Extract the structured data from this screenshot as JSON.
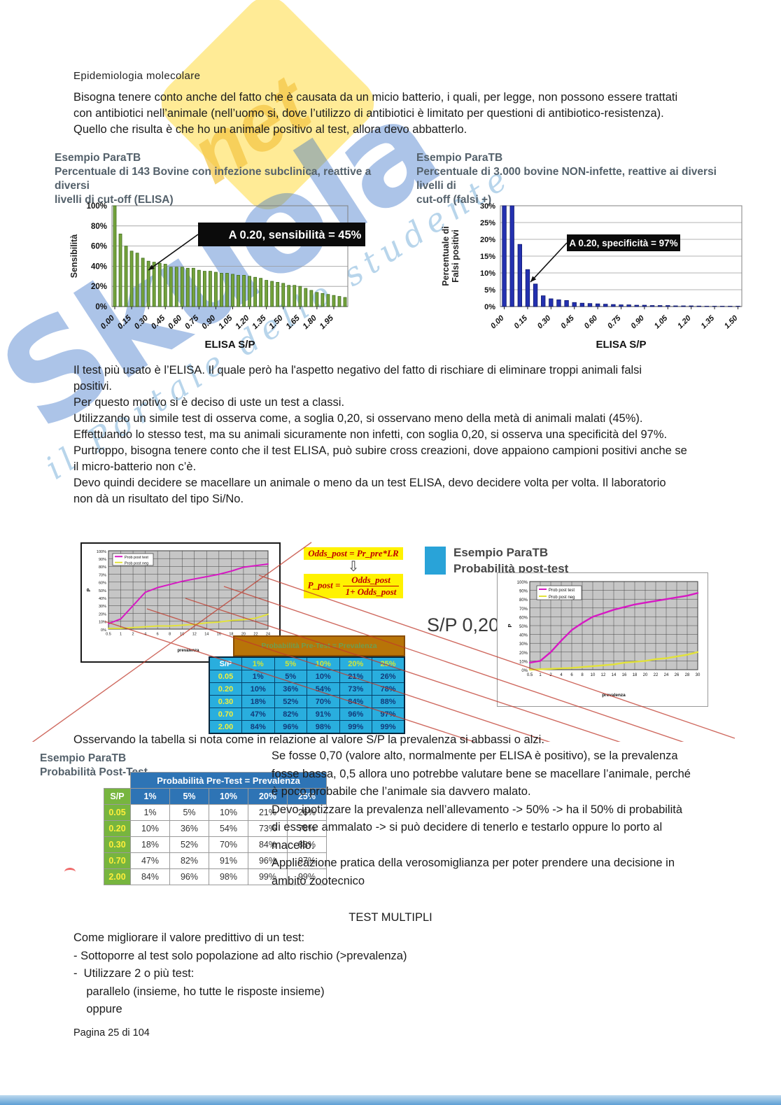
{
  "header": {
    "title": "Epidemiologia molecolare"
  },
  "intro": "Bisogna tenere conto anche del fatto che è causata da un micio batterio, i quali, per legge, non possono essere trattati\ncon antibiotici nell’animale (nell’uomo si, dove l’utilizzo di antibiotici è limitato per questioni di antibiotico-resistenza).\nQuello che risulta è che ho un animale positivo al test, allora devo abbatterlo.",
  "watermark": {
    "brand": "Skuola",
    "suffix": "net",
    "tagline": "il Portale dello studente"
  },
  "charts_section": {
    "left_title": "Esempio ParaTB",
    "left_subtitle": "Percentuale di 143 Bovine con infezione subclinica, reattive a diversi\nlivelli di cut-off (ELISA)",
    "right_title": "Esempio ParaTB",
    "right_subtitle": "Percentuale di 3.000 bovine NON-infette, reattive ai diversi livelli di\ncut-off (falsi +)"
  },
  "body_text": "Il test più usato è l’ELISA. Il quale però ha l'aspetto negativo del fatto di rischiare di eliminare troppi animali falsi\npositivi.\nPer questo motivo si è deciso di uste un test a classi.\nUtilizzando un simile test di osserva come, a soglia 0,20, si osservano meno della metà di animali malati (45%).\nEffettuando lo stesso test, ma su animali sicuramente non infetti, con soglia 0,20, si osserva una specificità del 97%.\nPurtroppo, bisogna tenere conto che il test ELISA, può subire cross creazioni, dove appaiono campioni positivi anche se\nil micro-batterio non c’è.\nDevo quindi decidere se macellare un animale o meno da un test ELISA, devo decidere volta per volta. Il laboratorio\nnon dà un risultato del tipo Si/No.",
  "mid_section": {
    "formula1": "Odds_post = Pr_pre*LR",
    "formula2_lhs": "P_post =",
    "formula2_num": "Odds_post",
    "formula2_den": "1+ Odds_post",
    "arrow_glyph": "⇩",
    "heading_line1": "Esempio ParaTB",
    "heading_line2": "Probabilità post-test",
    "sp_label": "S/P 0,20",
    "pretest_bar": "Probabilità Pre-Test = Prevalenza"
  },
  "observation": "Osservando la tabella si nota come in relazione al valore S/P la prevalenza si abbassi o alzi.",
  "post_test": {
    "heading": "Esempio ParaTB\nProbabilità Post-Test",
    "pretest_header": "Probabilità Pre-Test = Prevalenza"
  },
  "right_column": "Se fosse 0,70 (valore alto, normalmente per ELISA è positivo), se la prevalenza\nfosse bassa, 0,5 allora uno potrebbe valutare bene se macellare l’animale, perché\nè poco probabile che l’animale sia davvero malato.\nDevo ipotizzare la prevalenza nell’allevamento -> 50% -> ha il 50% di probabilità\ndi essere ammalato -> si può decidere di tenerlo e testarlo oppure lo porto al\nmacello.\nApplicazione pratica della verosomiglianza per poter prendere una decisione in\nambito zootecnico",
  "test_multipli": {
    "title": "TEST MULTIPLI",
    "body": "Come migliorare il valore predittivo di un test:\n- Sottoporre al test solo popolazione ad alto rischio (>prevalenza)\n-  Utilizzare 2 o più test:\n    parallelo (insieme, ho tutte le risposte insieme)\n    oppure"
  },
  "footer": "Pagina 25 di 104",
  "colors": {
    "green_bars": "#75a33c",
    "blue_bars": "#2431b0",
    "cyan_table": "#29aede",
    "brown_bar": "#b87408",
    "accent_blue": "#29a3d8",
    "magenta_line": "#d619c3",
    "yellow_line": "#e2e23a"
  },
  "tables": {
    "columns": [
      "S/P",
      "1%",
      "5%",
      "10%",
      "20%",
      "25%"
    ],
    "rows": [
      [
        "0.05",
        "1%",
        "5%",
        "10%",
        "21%",
        "26%"
      ],
      [
        "0.20",
        "10%",
        "36%",
        "54%",
        "73%",
        "78%"
      ],
      [
        "0.30",
        "18%",
        "52%",
        "70%",
        "84%",
        "88%"
      ],
      [
        "0.70",
        "47%",
        "82%",
        "91%",
        "96%",
        "97%"
      ],
      [
        "2.00",
        "84%",
        "96%",
        "98%",
        "99%",
        "99%"
      ]
    ]
  },
  "chart_data": [
    {
      "type": "bar",
      "title": "Percentuale di 143 Bovine con infezione subclinica, reattive a diversi livelli di cut-off (ELISA)",
      "categories": [
        "0.00",
        "0.15",
        "0.30",
        "0.45",
        "0.60",
        "0.75",
        "0.90",
        "1.05",
        "1.20",
        "1.35",
        "1.50",
        "1.65",
        "1.80",
        "1.95"
      ],
      "values": [
        100,
        72,
        60,
        55,
        53,
        48,
        45,
        44,
        43,
        42,
        39,
        39,
        39,
        38,
        38,
        36,
        35,
        35,
        34,
        33,
        33,
        32,
        31,
        31,
        30,
        29,
        28,
        26,
        25,
        24,
        23,
        21,
        21,
        20,
        18,
        16,
        14,
        13,
        12,
        11,
        10,
        9
      ],
      "xlabel": "ELISA S/P",
      "ylabel": "Sensibilità",
      "ylim": [
        0,
        100
      ],
      "ytick_step": 20,
      "annotation": "A 0.20, sensibilità = 45%",
      "bar_color": "#75a33c",
      "bar_edge": "#3f6d1e"
    },
    {
      "type": "bar",
      "title": "Percentuale di 3.000 bovine NON-infette, reattive ai diversi livelli di cut-off (falsi +)",
      "categories": [
        "0.00",
        "0.15",
        "0.30",
        "0.45",
        "0.60",
        "0.75",
        "0.90",
        "1.05",
        "1.20",
        "1.35",
        "1.50"
      ],
      "values": [
        31,
        30.5,
        18.5,
        11,
        6.7,
        3.2,
        2.3,
        2,
        1.8,
        1.2,
        1,
        0.9,
        0.8,
        0.7,
        0.6,
        0.5,
        0.5,
        0.4,
        0.4,
        0.3,
        0.3,
        0.3,
        0.2,
        0.2,
        0.2,
        0.15,
        0.1,
        0.1,
        0.1,
        0.1,
        0.1
      ],
      "xlabel": "ELISA S/P",
      "ylabel": "Percentuale di\nFalsi positivi",
      "ylim": [
        0,
        30
      ],
      "ytick_step": 5,
      "annotation": "A 0.20, specificità = 97%",
      "bar_color": "#2431b0",
      "bar_edge": "#101a6e"
    },
    {
      "type": "line",
      "x": [
        "0.5",
        "1",
        "2",
        "4",
        "6",
        "8",
        "10",
        "12",
        "14",
        "16",
        "18",
        "20",
        "22",
        "24"
      ],
      "series": [
        {
          "name": "Prob post test",
          "color": "#d619c3",
          "values": [
            7,
            13,
            30,
            47,
            53,
            57,
            61,
            64,
            67,
            70,
            74,
            79,
            81,
            83
          ]
        },
        {
          "name": "Prob post neg",
          "color": "#e2e23a",
          "values": [
            1,
            1,
            2,
            3,
            4,
            4,
            5,
            6,
            8,
            9,
            11,
            12,
            14,
            19
          ]
        }
      ],
      "xlabel": "prevalenza",
      "ylabel": "P",
      "ylim": [
        0,
        100
      ],
      "legend_position": "top-left"
    },
    {
      "type": "line",
      "x": [
        "0.5",
        "1",
        "2",
        "4",
        "6",
        "8",
        "10",
        "12",
        "14",
        "16",
        "18",
        "20",
        "22",
        "24",
        "26",
        "28",
        "30"
      ],
      "series": [
        {
          "name": "Prob post test",
          "color": "#d619c3",
          "values": [
            8,
            10,
            20,
            33,
            45,
            53,
            60,
            64,
            68,
            71,
            74,
            76,
            78,
            80,
            82,
            84,
            87
          ]
        },
        {
          "name": "Prob post neg",
          "color": "#e2e23a",
          "values": [
            0,
            0.5,
            1,
            1.5,
            2,
            3,
            4,
            5,
            6,
            8,
            9,
            10,
            12,
            13,
            15,
            17,
            20
          ]
        }
      ],
      "xlabel": "prevalenza",
      "ylabel": "P",
      "ylim": [
        0,
        100
      ],
      "legend_position": "top-left"
    }
  ]
}
